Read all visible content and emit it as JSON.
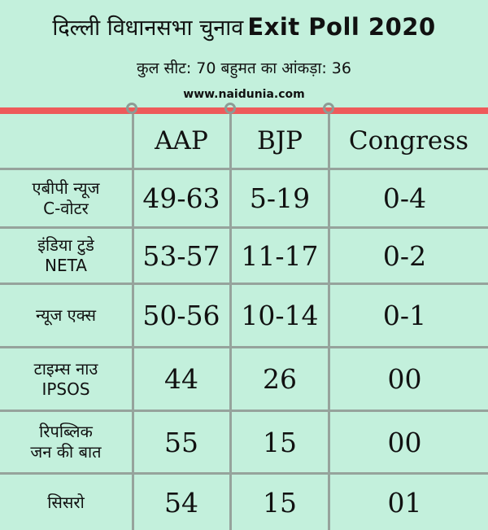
{
  "header": {
    "title_hindi": "दिल्ली विधानसभा चुनाव",
    "title_english": "Exit Poll 2020",
    "subtitle": "कुल सीट: 70 बहुमत का आंकड़ा: 36",
    "source": "www.naidunia.com"
  },
  "table": {
    "columns": [
      "AAP",
      "BJP",
      "Congress"
    ],
    "rows": [
      {
        "pollster": "एबीपी न्यूज\nC-वोटर",
        "aap": "49-63",
        "bjp": "5-19",
        "congress": "0-4"
      },
      {
        "pollster": "इंडिया टुडे\nNETA",
        "aap": "53-57",
        "bjp": "11-17",
        "congress": "0-2"
      },
      {
        "pollster": "न्यूज एक्स",
        "aap": "50-56",
        "bjp": "10-14",
        "congress": "0-1"
      },
      {
        "pollster": "टाइम्स नाउ\nIPSOS",
        "aap": "44",
        "bjp": "26",
        "congress": "00"
      },
      {
        "pollster": "रिपब्लिक\nजन की बात",
        "aap": "55",
        "bjp": "15",
        "congress": "00"
      },
      {
        "pollster": "सिसरो",
        "aap": "54",
        "bjp": "15",
        "congress": "01"
      }
    ]
  },
  "colors": {
    "background": "#c3f0dc",
    "accent_bar": "#ee5a5a",
    "grid": "#96a39c"
  }
}
